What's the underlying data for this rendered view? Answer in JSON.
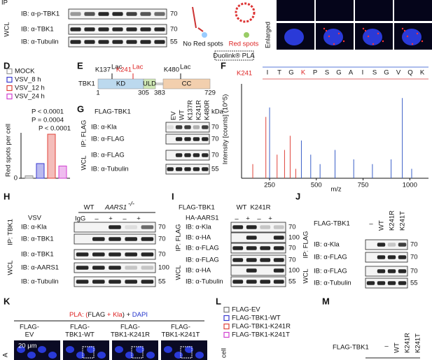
{
  "top": {
    "ip": "IP",
    "wcl": "WCL",
    "rows": [
      "IB: α-p-TBK1",
      "IB: α-TBK1",
      "IB: α-Tubulin"
    ],
    "mw": [
      70,
      70,
      55
    ],
    "no_red": "No Red spots",
    "red": "Red spots",
    "kit": "Duolink® PLA",
    "enlarged": "Enlarged"
  },
  "D": {
    "letter": "D"
  },
  "E": {
    "letter": "E",
    "protein": "TBK1",
    "domains": [
      "KD",
      "ULD",
      "CC"
    ],
    "sites": [
      {
        "site": "K137",
        "mod": "Lac"
      },
      {
        "site": "K241",
        "mod": "Lac"
      },
      {
        "site": "K480",
        "mod": "Lac"
      }
    ],
    "positions": [
      1,
      305,
      383,
      729
    ]
  },
  "G": {
    "letter": "G",
    "construct": "FLAG-TBK1",
    "lanes": [
      "EV",
      "WT",
      "K137R",
      "K241R",
      "K480R"
    ],
    "kda": "kDa",
    "ip": "IP: FLAG",
    "wcl": "WCL",
    "rows": [
      "IB: α-Kla",
      "IB: α-FLAG",
      "IB: α-FLAG",
      "IB: α-Tubulin"
    ],
    "mw": [
      70,
      70,
      70,
      55
    ]
  },
  "F": {
    "letter": "F",
    "site": "K241",
    "sequence": [
      "I",
      "T",
      "G",
      "K",
      "P",
      "S",
      "G",
      "A",
      "I",
      "S",
      "G",
      "V",
      "Q",
      "K"
    ]
  },
  "H": {
    "letter": "H",
    "virus": "VSV",
    "genotypes": [
      "WT",
      "AARS1"
    ],
    "ko": "-/-",
    "igg": "IgG",
    "signs": [
      "–",
      "+",
      "–",
      "+"
    ],
    "ip": "IP: TBK1",
    "wcl": "WCL",
    "rows": [
      "IB: α-Kla",
      "IB: α-TBK1",
      "IB: α-TBK1",
      "IB: α-AARS1",
      "IB: α-Tubulin"
    ],
    "mw": [
      70,
      70,
      70,
      100,
      55
    ]
  },
  "I": {
    "letter": "I",
    "construct": "FLAG-TBK1",
    "variants": [
      "WT",
      "K241R"
    ],
    "cotrans": "HA-AARS1",
    "signs": [
      "–",
      "+",
      "–",
      "+"
    ],
    "ip": "IP: FLAG",
    "wcl": "WCL",
    "rows": [
      "IB: α-Kla",
      "IB: α-HA",
      "IB: α-FLAG",
      "IB: α-FLAG",
      "IB: α-HA",
      "IB: α-Tubulin"
    ],
    "mw": [
      70,
      100,
      70,
      70,
      100,
      55
    ]
  },
  "J": {
    "letter": "J",
    "construct": "FLAG-TBK1",
    "lanes": [
      "–",
      "WT",
      "K241R",
      "K241T"
    ],
    "ip": "IP: FLAG",
    "wcl": "WCL",
    "rows": [
      "IB: α-Kla",
      "IB: α-FLAG",
      "IB: α-FLAG",
      "IB: α-Tubulin"
    ],
    "mw": [
      70,
      70,
      70,
      55
    ]
  },
  "K": {
    "letter": "K",
    "title": [
      "PLA: (",
      "FLAG",
      " + ",
      "Kla",
      ") + ",
      "DAPI"
    ],
    "columns": [
      [
        "FLAG-",
        "EV"
      ],
      [
        "FLAG-",
        "TBK1-WT"
      ],
      [
        "FLAG-",
        "TBK1-K241R"
      ],
      [
        "FLAG-",
        "TBK1-K241T"
      ]
    ],
    "scale": "20 μm",
    "row": "A"
  },
  "L": {
    "letter": "L",
    "legend": [
      {
        "name": "FLAG-EV",
        "color": "#777777"
      },
      {
        "name": "FLAG-TBK1-WT",
        "color": "#3a3ad0"
      },
      {
        "name": "FLAG-TBK1-K241R",
        "color": "#e0433a"
      },
      {
        "name": "FLAG-TBK1-K241T",
        "color": "#d040d0"
      }
    ],
    "ylabel": "cell"
  },
  "M": {
    "letter": "M",
    "construct": "FLAG-TBK1",
    "lanes": [
      "–",
      "WT",
      "K241R",
      "K241T"
    ]
  },
  "chart_data": [
    {
      "type": "bar",
      "ylabel": "Red spots per cell",
      "ylim": [
        0,
        60
      ],
      "yticks": [
        0
      ],
      "series": [
        {
          "name": "MOCK",
          "color": "#999999",
          "values": [
            2
          ]
        },
        {
          "name": "VSV_8 h",
          "color": "#3a3ad0",
          "values": [
            12
          ]
        },
        {
          "name": "VSV_12 h",
          "color": "#e0433a",
          "values": [
            36
          ]
        },
        {
          "name": "VSV_24 h",
          "color": "#d040d0",
          "values": [
            10
          ]
        }
      ],
      "annotations": [
        "P < 0.0001",
        "P = 0.0004",
        "P < 0.0001"
      ]
    },
    {
      "type": "spectrum",
      "ylabel": "Intensity [counts] (10^5)",
      "xlabel": "m/z",
      "xlim": [
        100,
        1100
      ],
      "ylim": [
        0,
        10
      ],
      "xticks": [
        250,
        500,
        750,
        1000
      ],
      "series": [
        {
          "color": "#e0433a",
          "x": [
            160,
            230,
            290,
            330,
            360,
            390
          ],
          "values": [
            1.5,
            6.5,
            2.5,
            3,
            4.5,
            1
          ]
        },
        {
          "color": "#3a5fc8",
          "x": [
            250,
            420,
            470,
            520,
            600,
            700,
            800,
            900,
            960,
            1010
          ],
          "values": [
            7.5,
            4,
            2.5,
            1.5,
            3,
            2,
            1.5,
            2,
            8.5,
            1
          ]
        }
      ]
    }
  ]
}
